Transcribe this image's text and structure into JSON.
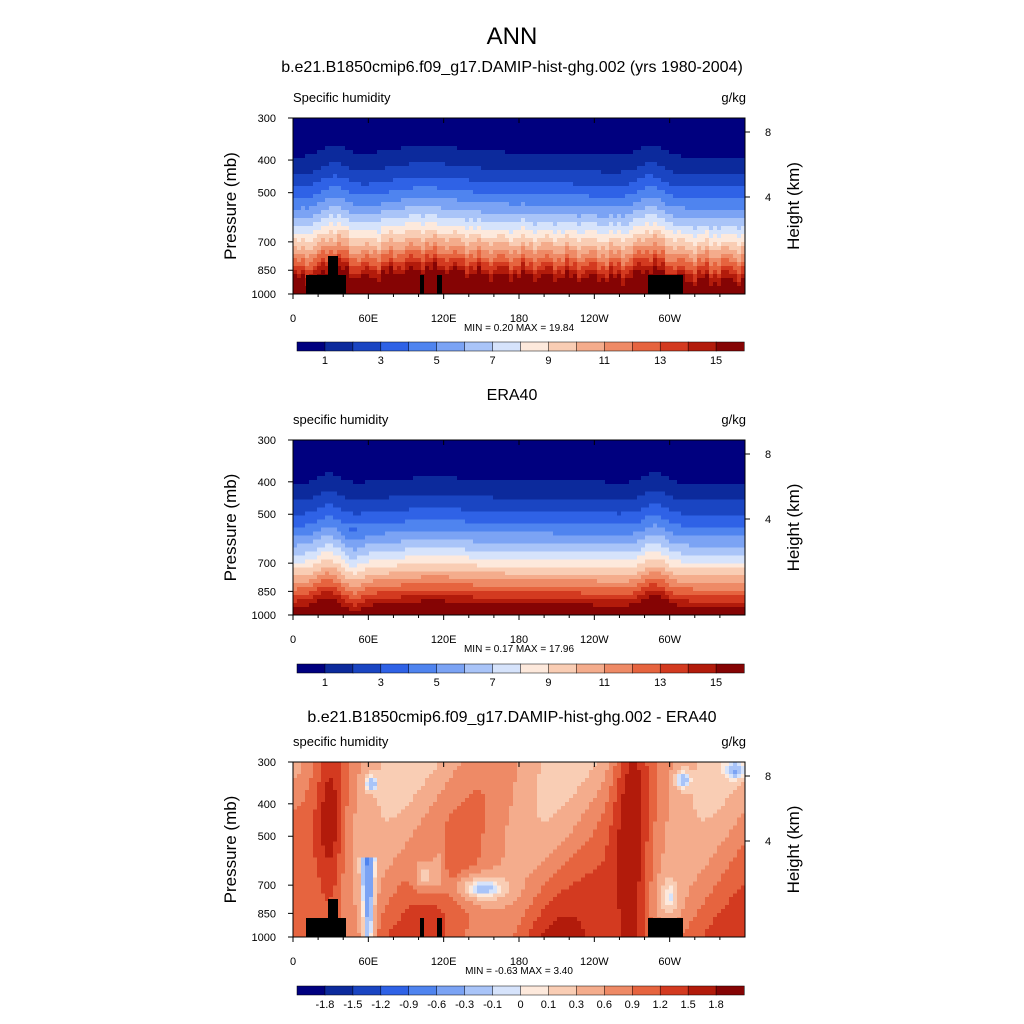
{
  "figure_title": "ANN",
  "chart_data": [
    {
      "type": "contour",
      "title": "b.e21.B1850cmip6.f09_g17.DAMIP-hist-ghg.002 (yrs 1980-2004)",
      "left_string": "Specific humidity",
      "right_string": "g/kg",
      "ylabel": "Pressure (mb)",
      "ylabel_right": "Height (km)",
      "x_ticks": [
        "0",
        "60E",
        "120E",
        "180",
        "120W",
        "60W"
      ],
      "y_ticks": [
        "300",
        "400",
        "500",
        "700",
        "850",
        "1000"
      ],
      "y_ticks_right": [
        "8",
        "4"
      ],
      "min_max_text": "MIN =   0.20  MAX =  19.84",
      "colorbar_labels": [
        "1",
        "3",
        "5",
        "7",
        "9",
        "11",
        "13",
        "15"
      ],
      "colorbar_colors": [
        "#00007f",
        "#0c2a9c",
        "#1a45c2",
        "#2f62e6",
        "#4f84ef",
        "#7ba3f4",
        "#a9c4f8",
        "#d6e3fb",
        "#fde9dc",
        "#f9cdb4",
        "#f4ac8c",
        "#ee8a66",
        "#e6643f",
        "#d33a20",
        "#b21b0b",
        "#850404"
      ],
      "contour_min": 0.2,
      "contour_max": 19.84,
      "pattern": "model"
    },
    {
      "type": "contour",
      "title": "ERA40",
      "left_string": "specific humidity",
      "right_string": "g/kg",
      "ylabel": "Pressure (mb)",
      "ylabel_right": "Height (km)",
      "x_ticks": [
        "0",
        "60E",
        "120E",
        "180",
        "120W",
        "60W"
      ],
      "y_ticks": [
        "300",
        "400",
        "500",
        "700",
        "850",
        "1000"
      ],
      "y_ticks_right": [
        "8",
        "4"
      ],
      "min_max_text": "MIN =   0.17  MAX =  17.96",
      "colorbar_labels": [
        "1",
        "3",
        "5",
        "7",
        "9",
        "11",
        "13",
        "15"
      ],
      "colorbar_colors": [
        "#00007f",
        "#0c2a9c",
        "#1a45c2",
        "#2f62e6",
        "#4f84ef",
        "#7ba3f4",
        "#a9c4f8",
        "#d6e3fb",
        "#fde9dc",
        "#f9cdb4",
        "#f4ac8c",
        "#ee8a66",
        "#e6643f",
        "#d33a20",
        "#b21b0b",
        "#850404"
      ],
      "contour_min": 0.17,
      "contour_max": 17.96,
      "pattern": "obs"
    },
    {
      "type": "contour",
      "title": "b.e21.B1850cmip6.f09_g17.DAMIP-hist-ghg.002 - ERA40",
      "left_string": "specific humidity",
      "right_string": "g/kg",
      "ylabel": "Pressure (mb)",
      "ylabel_right": "Height (km)",
      "x_ticks": [
        "0",
        "60E",
        "120E",
        "180",
        "120W",
        "60W"
      ],
      "y_ticks": [
        "300",
        "400",
        "500",
        "700",
        "850",
        "1000"
      ],
      "y_ticks_right": [
        "8",
        "4"
      ],
      "min_max_text": "MIN =  -0.63  MAX =   3.40",
      "colorbar_labels": [
        "-1.8",
        "-1.5",
        "-1.2",
        "-0.9",
        "-0.6",
        "-0.3",
        "-0.1",
        "0",
        "0.1",
        "0.3",
        "0.6",
        "0.9",
        "1.2",
        "1.5",
        "1.8"
      ],
      "colorbar_colors": [
        "#00007f",
        "#0c2a9c",
        "#1a45c2",
        "#2f62e6",
        "#4f84ef",
        "#7ba3f4",
        "#a9c4f8",
        "#d6e3fb",
        "#fde9dc",
        "#f9cdb4",
        "#f4ac8c",
        "#ee8a66",
        "#e6643f",
        "#d33a20",
        "#b21b0b",
        "#850404"
      ],
      "contour_min": -0.63,
      "contour_max": 3.4,
      "pattern": "diff"
    }
  ]
}
